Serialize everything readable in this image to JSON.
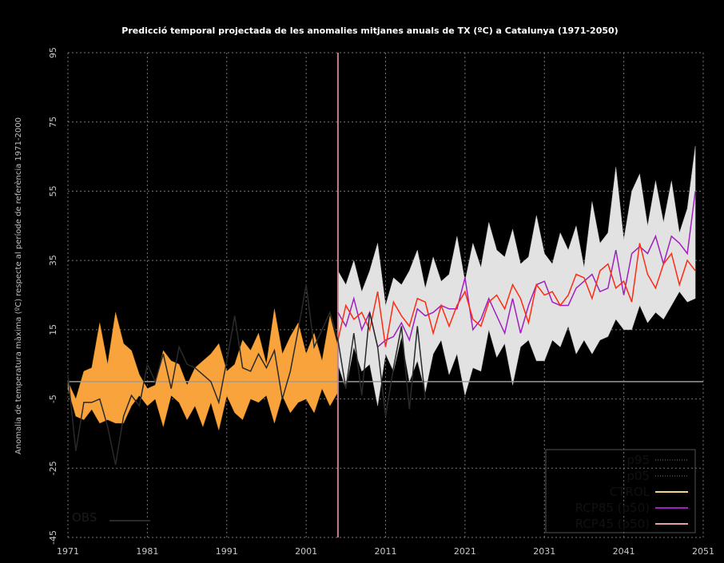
{
  "chart_data": {
    "type": "line",
    "title": "Predicció temporal projectada de les anomalies mitjanes anuals de TX (ºC) a Catalunya (1971-2050)",
    "ylabel": "Anomalia de temperatura màxima (ºC) respecte al període de referència 1971-2000",
    "xlim": [
      1971,
      2051
    ],
    "ylim": [
      -45,
      95
    ],
    "x_ticks": [
      "1971",
      "1981",
      "1991",
      "2001",
      "2011",
      "2021",
      "2031",
      "2041",
      "2051"
    ],
    "y_ticks": [
      "-45",
      "-25",
      "-5",
      "15",
      "35",
      "55",
      "75",
      "95"
    ],
    "zero_line": 0,
    "divider_year": 2005,
    "legend_position": "bottom-right",
    "legend": [
      "p95",
      "p05",
      "CTROL",
      "RCP85 (p50)",
      "RCP45 (p50)"
    ],
    "obs_label": "OBS",
    "colors": {
      "background": "#000000",
      "ctrl_band": "#f9a33c",
      "scenario_band": "#e2e2e2",
      "obs": "#2a2a2a",
      "rcp85": "#a020c0",
      "rcp45": "#ff2a12",
      "divider": "#c4838b",
      "zero_line": "#9a9a9a"
    },
    "years_hist": [
      1971,
      1972,
      1973,
      1974,
      1975,
      1976,
      1977,
      1978,
      1979,
      1980,
      1981,
      1982,
      1983,
      1984,
      1985,
      1986,
      1987,
      1988,
      1989,
      1990,
      1991,
      1992,
      1993,
      1994,
      1995,
      1996,
      1997,
      1998,
      1999,
      2000,
      2001,
      2002,
      2003,
      2004,
      2005
    ],
    "ctrl_p95": [
      0,
      -5,
      3,
      4,
      17,
      5,
      20,
      11,
      9,
      2,
      -2,
      -1,
      9,
      6,
      5,
      -1,
      4,
      6,
      8,
      11,
      3,
      5,
      12,
      9,
      14,
      5,
      21,
      8,
      13,
      17,
      8,
      14,
      6,
      19,
      10
    ],
    "ctrl_p05": [
      -2,
      -10,
      -11,
      -8,
      -12,
      -11,
      -12,
      -12,
      -7,
      -4,
      -7,
      -5,
      -13,
      -4,
      -6,
      -11,
      -7,
      -13,
      -6,
      -14,
      -4,
      -9,
      -11,
      -5,
      -6,
      -4,
      -12,
      -4,
      -9,
      -6,
      -5,
      -9,
      -2,
      -7,
      -3
    ],
    "years_obs": [
      1971,
      1972,
      1973,
      1974,
      1975,
      1976,
      1977,
      1978,
      1979,
      1980,
      1981,
      1982,
      1983,
      1984,
      1985,
      1986,
      1987,
      1988,
      1989,
      1990,
      1991,
      1992,
      1993,
      1994,
      1995,
      1996,
      1997,
      1998,
      1999,
      2000,
      2001,
      2002,
      2003,
      2004,
      2005,
      2006,
      2007,
      2008,
      2009,
      2010,
      2011,
      2012,
      2013,
      2014,
      2015,
      2016
    ],
    "obs": [
      2,
      -20,
      -6,
      -6,
      -5,
      -13,
      -24,
      -10,
      -4,
      -7,
      5,
      0,
      8,
      -2,
      10,
      5,
      4,
      2,
      0,
      -6,
      6,
      19,
      4,
      3,
      8,
      4,
      9,
      -5,
      3,
      15,
      28,
      10,
      15,
      20,
      12,
      -2,
      14,
      -4,
      20,
      10,
      -10,
      4,
      16,
      -8,
      16,
      -5
    ],
    "years_proj": [
      2005,
      2006,
      2007,
      2008,
      2009,
      2010,
      2011,
      2012,
      2013,
      2014,
      2015,
      2016,
      2017,
      2018,
      2019,
      2020,
      2021,
      2022,
      2023,
      2024,
      2025,
      2026,
      2027,
      2028,
      2029,
      2030,
      2031,
      2032,
      2033,
      2034,
      2035,
      2036,
      2037,
      2038,
      2039,
      2040,
      2041,
      2042,
      2043,
      2044,
      2045,
      2046,
      2047,
      2048,
      2049,
      2050
    ],
    "proj_p95": [
      32,
      28,
      35,
      26,
      32,
      40,
      22,
      30,
      28,
      32,
      38,
      27,
      36,
      29,
      31,
      42,
      29,
      40,
      33,
      46,
      38,
      36,
      44,
      34,
      36,
      48,
      37,
      34,
      43,
      38,
      45,
      33,
      52,
      40,
      43,
      62,
      41,
      55,
      60,
      45,
      58,
      46,
      58,
      43,
      50,
      68
    ],
    "proj_p05": [
      5,
      -2,
      10,
      3,
      5,
      -7,
      8,
      3,
      13,
      0,
      6,
      -3,
      8,
      12,
      2,
      8,
      -4,
      4,
      3,
      15,
      7,
      11,
      -1,
      10,
      12,
      6,
      6,
      12,
      10,
      16,
      8,
      12,
      8,
      12,
      13,
      18,
      15,
      15,
      22,
      17,
      20,
      18,
      22,
      26,
      23,
      24
    ],
    "rcp85": [
      20,
      16,
      24,
      15,
      20,
      10,
      12,
      13,
      17,
      12,
      21,
      19,
      20,
      22,
      21,
      21,
      30,
      15,
      18,
      24,
      19,
      14,
      24,
      14,
      22,
      28,
      29,
      23,
      22,
      22,
      27,
      29,
      31,
      26,
      27,
      38,
      25,
      37,
      39,
      37,
      42,
      34,
      42,
      40,
      37,
      55
    ],
    "rcp45": [
      12,
      22,
      18,
      20,
      15,
      26,
      10,
      23,
      19,
      16,
      24,
      23,
      14,
      22,
      16,
      22,
      26,
      18,
      16,
      23,
      25,
      21,
      28,
      24,
      17,
      28,
      25,
      26,
      22,
      25,
      31,
      30,
      24,
      32,
      34,
      27,
      29,
      23,
      40,
      31,
      27,
      34,
      37,
      28,
      35,
      32
    ]
  }
}
